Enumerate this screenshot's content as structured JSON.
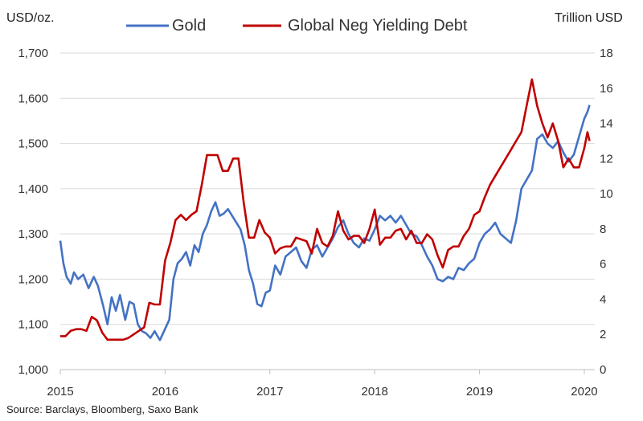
{
  "chart_data": {
    "type": "line",
    "title": "",
    "left_axis_unit": "USD/oz.",
    "right_axis_unit": "Trillion USD",
    "source": "Source: Barclays, Bloomberg, Saxo Bank",
    "legend": [
      "Gold",
      "Global Neg Yielding Debt"
    ],
    "legend_position": "top",
    "grid": true,
    "x_ticks": [
      "2015",
      "2016",
      "2017",
      "2018",
      "2019",
      "2020"
    ],
    "xlim": [
      2015.0,
      2020.1
    ],
    "y_left_ticks": [
      "1,000",
      "1,100",
      "1,200",
      "1,300",
      "1,400",
      "1,500",
      "1,600",
      "1,700"
    ],
    "ylim_left": [
      1000,
      1700
    ],
    "y_right_ticks": [
      "0",
      "2",
      "4",
      "6",
      "8",
      "10",
      "12",
      "14",
      "16",
      "18"
    ],
    "ylim_right": [
      0,
      18
    ],
    "series": [
      {
        "name": "Gold",
        "axis": "left",
        "color": "#4472C4",
        "x": [
          2015.0,
          2015.03,
          2015.06,
          2015.1,
          2015.13,
          2015.17,
          2015.22,
          2015.27,
          2015.32,
          2015.36,
          2015.41,
          2015.45,
          2015.49,
          2015.53,
          2015.57,
          2015.62,
          2015.66,
          2015.7,
          2015.74,
          2015.78,
          2015.82,
          2015.86,
          2015.9,
          2015.95,
          2016.0,
          2016.04,
          2016.08,
          2016.12,
          2016.16,
          2016.2,
          2016.24,
          2016.28,
          2016.32,
          2016.36,
          2016.4,
          2016.44,
          2016.48,
          2016.52,
          2016.56,
          2016.6,
          2016.64,
          2016.68,
          2016.72,
          2016.76,
          2016.8,
          2016.84,
          2016.88,
          2016.92,
          2016.96,
          2017.0,
          2017.05,
          2017.1,
          2017.15,
          2017.2,
          2017.25,
          2017.3,
          2017.35,
          2017.4,
          2017.45,
          2017.5,
          2017.55,
          2017.6,
          2017.65,
          2017.7,
          2017.75,
          2017.8,
          2017.85,
          2017.9,
          2017.95,
          2018.0,
          2018.05,
          2018.1,
          2018.15,
          2018.2,
          2018.25,
          2018.3,
          2018.35,
          2018.4,
          2018.45,
          2018.5,
          2018.55,
          2018.6,
          2018.65,
          2018.7,
          2018.75,
          2018.8,
          2018.85,
          2018.9,
          2018.95,
          2019.0,
          2019.05,
          2019.1,
          2019.15,
          2019.2,
          2019.25,
          2019.3,
          2019.35,
          2019.4,
          2019.45,
          2019.5,
          2019.55,
          2019.6,
          2019.65,
          2019.7,
          2019.75,
          2019.8,
          2019.85,
          2019.9,
          2019.95,
          2020.0,
          2020.03,
          2020.05
        ],
        "values": [
          1285,
          1235,
          1205,
          1190,
          1215,
          1200,
          1210,
          1180,
          1205,
          1185,
          1140,
          1100,
          1160,
          1130,
          1165,
          1110,
          1150,
          1145,
          1100,
          1085,
          1080,
          1070,
          1085,
          1065,
          1090,
          1110,
          1200,
          1235,
          1245,
          1260,
          1230,
          1275,
          1260,
          1300,
          1320,
          1350,
          1370,
          1340,
          1345,
          1355,
          1340,
          1325,
          1310,
          1275,
          1220,
          1190,
          1145,
          1140,
          1170,
          1175,
          1230,
          1210,
          1250,
          1260,
          1270,
          1240,
          1225,
          1265,
          1275,
          1250,
          1270,
          1290,
          1315,
          1330,
          1300,
          1280,
          1270,
          1290,
          1285,
          1310,
          1340,
          1330,
          1340,
          1325,
          1340,
          1320,
          1300,
          1295,
          1275,
          1250,
          1230,
          1200,
          1195,
          1205,
          1200,
          1225,
          1220,
          1235,
          1245,
          1280,
          1300,
          1310,
          1325,
          1300,
          1290,
          1280,
          1330,
          1400,
          1420,
          1440,
          1510,
          1520,
          1500,
          1490,
          1505,
          1480,
          1460,
          1475,
          1515,
          1555,
          1570,
          1585
        ]
      },
      {
        "name": "Global Neg Yielding Debt",
        "axis": "right",
        "color": "#C00000",
        "x": [
          2015.0,
          2015.05,
          2015.1,
          2015.15,
          2015.2,
          2015.25,
          2015.3,
          2015.35,
          2015.4,
          2015.45,
          2015.5,
          2015.55,
          2015.6,
          2015.65,
          2015.7,
          2015.75,
          2015.8,
          2015.85,
          2015.9,
          2015.95,
          2016.0,
          2016.05,
          2016.1,
          2016.15,
          2016.2,
          2016.25,
          2016.3,
          2016.35,
          2016.4,
          2016.45,
          2016.5,
          2016.55,
          2016.6,
          2016.65,
          2016.7,
          2016.75,
          2016.8,
          2016.85,
          2016.9,
          2016.95,
          2017.0,
          2017.05,
          2017.1,
          2017.15,
          2017.2,
          2017.25,
          2017.3,
          2017.35,
          2017.4,
          2017.45,
          2017.5,
          2017.55,
          2017.6,
          2017.65,
          2017.7,
          2017.75,
          2017.8,
          2017.85,
          2017.9,
          2017.95,
          2018.0,
          2018.05,
          2018.1,
          2018.15,
          2018.2,
          2018.25,
          2018.3,
          2018.35,
          2018.4,
          2018.45,
          2018.5,
          2018.55,
          2018.6,
          2018.65,
          2018.7,
          2018.75,
          2018.8,
          2018.85,
          2018.9,
          2018.95,
          2019.0,
          2019.05,
          2019.1,
          2019.15,
          2019.2,
          2019.25,
          2019.3,
          2019.35,
          2019.4,
          2019.45,
          2019.5,
          2019.55,
          2019.6,
          2019.65,
          2019.7,
          2019.75,
          2019.8,
          2019.85,
          2019.9,
          2019.95,
          2020.0,
          2020.03,
          2020.05
        ],
        "values": [
          1.9,
          1.9,
          2.2,
          2.3,
          2.3,
          2.2,
          3.0,
          2.8,
          2.1,
          1.7,
          1.7,
          1.7,
          1.7,
          1.8,
          2.0,
          2.2,
          2.4,
          3.8,
          3.7,
          3.7,
          6.2,
          7.2,
          8.5,
          8.8,
          8.5,
          8.8,
          9.0,
          10.5,
          12.2,
          12.2,
          12.2,
          11.3,
          11.3,
          12.0,
          12.0,
          9.5,
          7.5,
          7.5,
          8.5,
          7.8,
          7.5,
          6.6,
          6.9,
          7.0,
          7.0,
          7.5,
          7.4,
          7.3,
          6.6,
          8.0,
          7.2,
          7.0,
          7.6,
          9.0,
          7.9,
          7.4,
          7.6,
          7.6,
          7.2,
          8.0,
          9.1,
          7.1,
          7.5,
          7.5,
          7.9,
          8.0,
          7.4,
          7.9,
          7.2,
          7.2,
          7.7,
          7.4,
          6.5,
          5.8,
          6.8,
          7.0,
          7.0,
          7.6,
          8.0,
          8.8,
          9.0,
          9.8,
          10.5,
          11.0,
          11.5,
          12.0,
          12.5,
          13.0,
          13.5,
          15.0,
          16.5,
          15.0,
          14.0,
          13.2,
          14.0,
          13.0,
          11.5,
          12.0,
          11.5,
          11.5,
          12.6,
          13.5,
          13.0
        ]
      }
    ]
  }
}
